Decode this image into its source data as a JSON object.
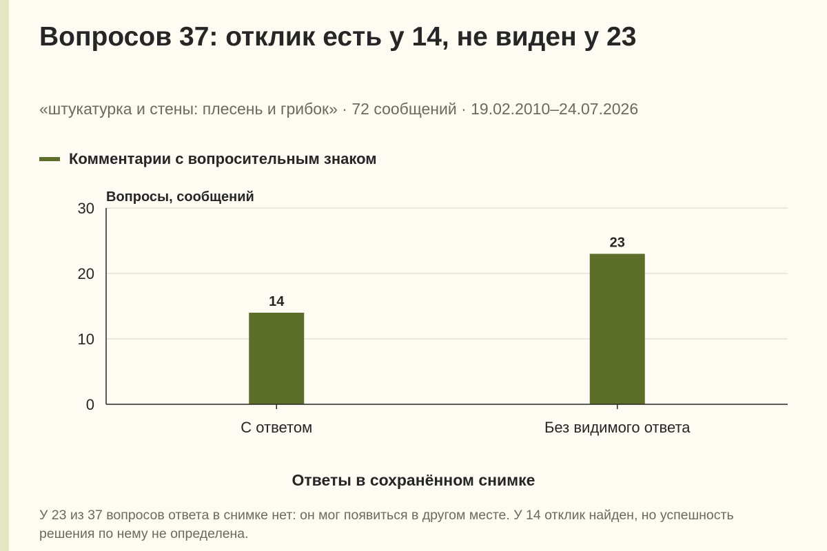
{
  "title": "Вопросов 37: отклик есть у 14, не виден у 23",
  "subtitle": "«штукатурка и стены: плесень и грибок» · 72 сообщений · 19.02.2010–24.07.2026",
  "note": "У 23 из 37 вопросов ответа в снимке нет: он мог появиться в другом месте. У 14 отклик найден, но успешность решения по нему не определена.",
  "chart_data": {
    "type": "bar",
    "title": "Вопросов 37: отклик есть у 14, не виден у 23",
    "categories": [
      "С ответом",
      "Без видимого ответа"
    ],
    "series": [
      {
        "name": "Комментарии с вопросительным знаком",
        "values": [
          14,
          23
        ],
        "color": "#5c6e29"
      }
    ],
    "data_labels": [
      "14",
      "23"
    ],
    "xlabel": "Ответы в сохранённом снимке",
    "ylabel": "Вопросы, сообщений",
    "ylim": [
      0,
      30
    ],
    "yticks": [
      0,
      10,
      20,
      30
    ],
    "ytick_labels": [
      "0",
      "10",
      "20",
      "30"
    ],
    "grid": true,
    "legend_position": "top-left"
  }
}
